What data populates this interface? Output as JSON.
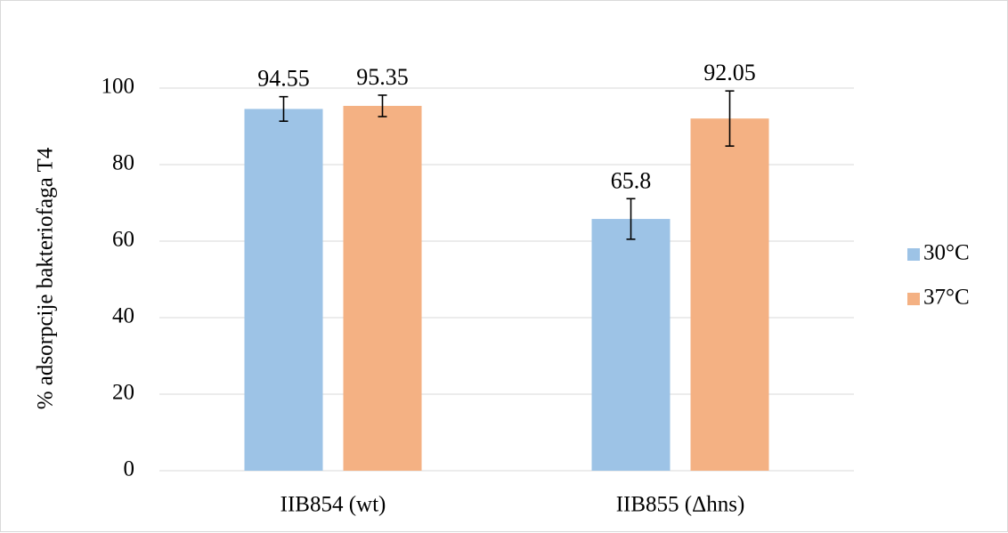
{
  "chart_data": {
    "type": "bar",
    "categories": [
      "IIB854 (wt)",
      "IIB855 (Δhns)"
    ],
    "series": [
      {
        "name": "30°C",
        "color": "#9dc3e6",
        "values": [
          94.55,
          65.8
        ],
        "errors": [
          3.2,
          5.3
        ]
      },
      {
        "name": "37°C",
        "color": "#f4b183",
        "values": [
          95.35,
          92.05
        ],
        "errors": [
          2.8,
          7.2
        ]
      }
    ],
    "ylabel": "% adsorpcije bakteriofaga T4",
    "xlabel": "",
    "ylim": [
      0,
      100
    ],
    "yticks": [
      0,
      20,
      40,
      60,
      80,
      100
    ],
    "grid": true,
    "legend": "right"
  }
}
